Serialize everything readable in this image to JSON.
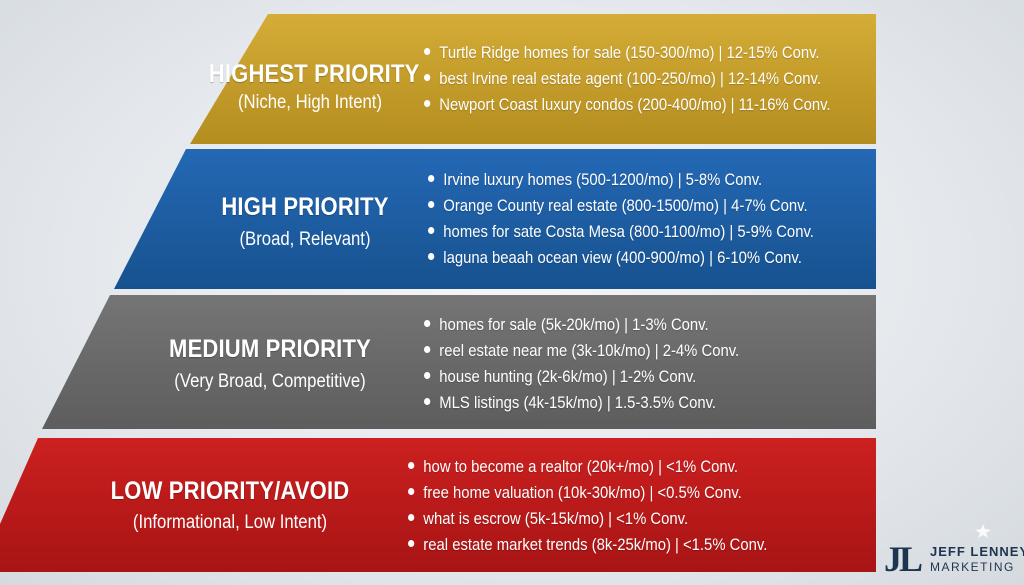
{
  "tiers": [
    {
      "title": "HIGHEST PRIORITY",
      "subtitle": "(Niche, High Intent)",
      "color": "#c19a2a",
      "items": [
        "Turtle Ridge homes for sale (150-300/mo) | 12-15% Conv.",
        "best Irvine real estate agent (100-250/mo) | 12-14% Conv.",
        "Newport Coast luxury condos (200-400/mo) | 11-16% Conv."
      ]
    },
    {
      "title": "HIGH PRIORITY",
      "subtitle": "(Broad, Relevant)",
      "color": "#1d5fa8",
      "items": [
        "Irvine luxury homes (500-1200/mo) | 5-8% Conv.",
        "Orange County real estate (800-1500/mo) | 4-7% Conv.",
        "homes for sate Costa Mesa (800-1100/mo) | 5-9% Conv.",
        "laguna beaah ocean view (400-900/mo) | 6-10% Conv."
      ]
    },
    {
      "title": "MEDIUM PRIORITY",
      "subtitle": "(Very Broad, Competitive)",
      "color": "#6b6b6b",
      "items": [
        "homes for sale (5k-20k/mo) | 1-3% Conv.",
        "reel estate near me (3k-10k/mo) | 2-4% Conv.",
        "house hunting (2k-6k/mo) | 1-2% Conv.",
        "MLS listings (4k-15k/mo) | 1.5-3.5% Conv."
      ]
    },
    {
      "title": "LOW PRIORITY/AVOID",
      "subtitle": "(Informational, Low Intent)",
      "color": "#c01a1a",
      "items": [
        "how to become a realtor (20k+/mo) | <1% Conv.",
        "free home valuation (10k-30k/mo) | <0.5% Conv.",
        "what is escrow (5k-15k/mo) | <1% Conv.",
        "real estate market trends (8k-25k/mo) | <1.5% Conv."
      ]
    }
  ],
  "logo": {
    "mark": "JL",
    "name": "JEFF LENNEY",
    "tagline": "MARKETING",
    "color": "#1d3550"
  }
}
